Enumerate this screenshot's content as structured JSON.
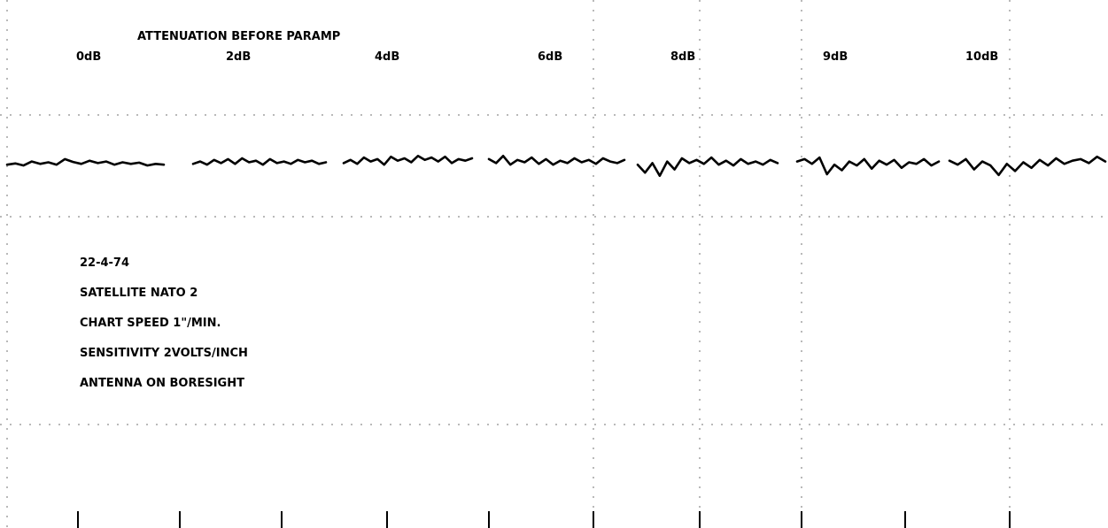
{
  "chart_data": {
    "type": "line",
    "title": "ATTENUATION BEFORE PARAMP",
    "categories": [
      "0dB",
      "2dB",
      "4dB",
      "6dB",
      "8dB",
      "9dB",
      "10dB"
    ],
    "grid": true,
    "notes": [
      "22-4-74",
      "SATELLITE NATO 2",
      "CHART SPEED 1\"/MIN.",
      "SENSITIVITY 2VOLTS/INCH",
      "ANTENNA ON BORESIGHT"
    ],
    "series": [
      {
        "values": [
          [
            0.2,
            0.35,
            0.1,
            0.6,
            0.3,
            0.5,
            0.2,
            0.9,
            0.55,
            0.3,
            0.7,
            0.4,
            0.6,
            0.2,
            0.5,
            0.3,
            0.45,
            0.1,
            0.3,
            0.2
          ],
          [
            0.3,
            0.6,
            0.2,
            0.8,
            0.4,
            0.9,
            0.3,
            1.0,
            0.5,
            0.7,
            0.2,
            0.9,
            0.4,
            0.6,
            0.3,
            0.8,
            0.5,
            0.7,
            0.3,
            0.5
          ],
          [
            0.4,
            0.8,
            0.3,
            1.1,
            0.6,
            0.9,
            0.2,
            1.2,
            0.7,
            1.0,
            0.5,
            1.3,
            0.8,
            1.1,
            0.6,
            1.2,
            0.4,
            0.9,
            0.7,
            1.0
          ],
          [
            0.9,
            0.4,
            1.3,
            0.2,
            0.8,
            0.5,
            1.1,
            0.3,
            0.9,
            0.2,
            0.7,
            0.4,
            1.0,
            0.5,
            0.8,
            0.3,
            1.0,
            0.6,
            0.4,
            0.8
          ],
          [
            0.2,
            -0.8,
            0.4,
            -1.2,
            0.6,
            -0.4,
            1.0,
            0.4,
            0.8,
            0.3,
            1.1,
            0.2,
            0.7,
            0.1,
            0.9,
            0.3,
            0.6,
            0.2,
            0.8,
            0.4
          ],
          [
            0.6,
            0.9,
            0.3,
            1.1,
            -1.0,
            0.2,
            -0.5,
            0.6,
            0.1,
            0.9,
            -0.3,
            0.7,
            0.2,
            0.8,
            -0.2,
            0.5,
            0.3,
            0.9,
            0.1,
            0.6
          ],
          [
            0.7,
            0.2,
            0.9,
            -0.4,
            0.6,
            0.1,
            -1.1,
            0.3,
            -0.6,
            0.5,
            -0.2,
            0.8,
            0.1,
            1.0,
            0.3,
            0.7,
            0.9,
            0.4,
            1.2,
            0.6
          ]
        ]
      }
    ]
  }
}
